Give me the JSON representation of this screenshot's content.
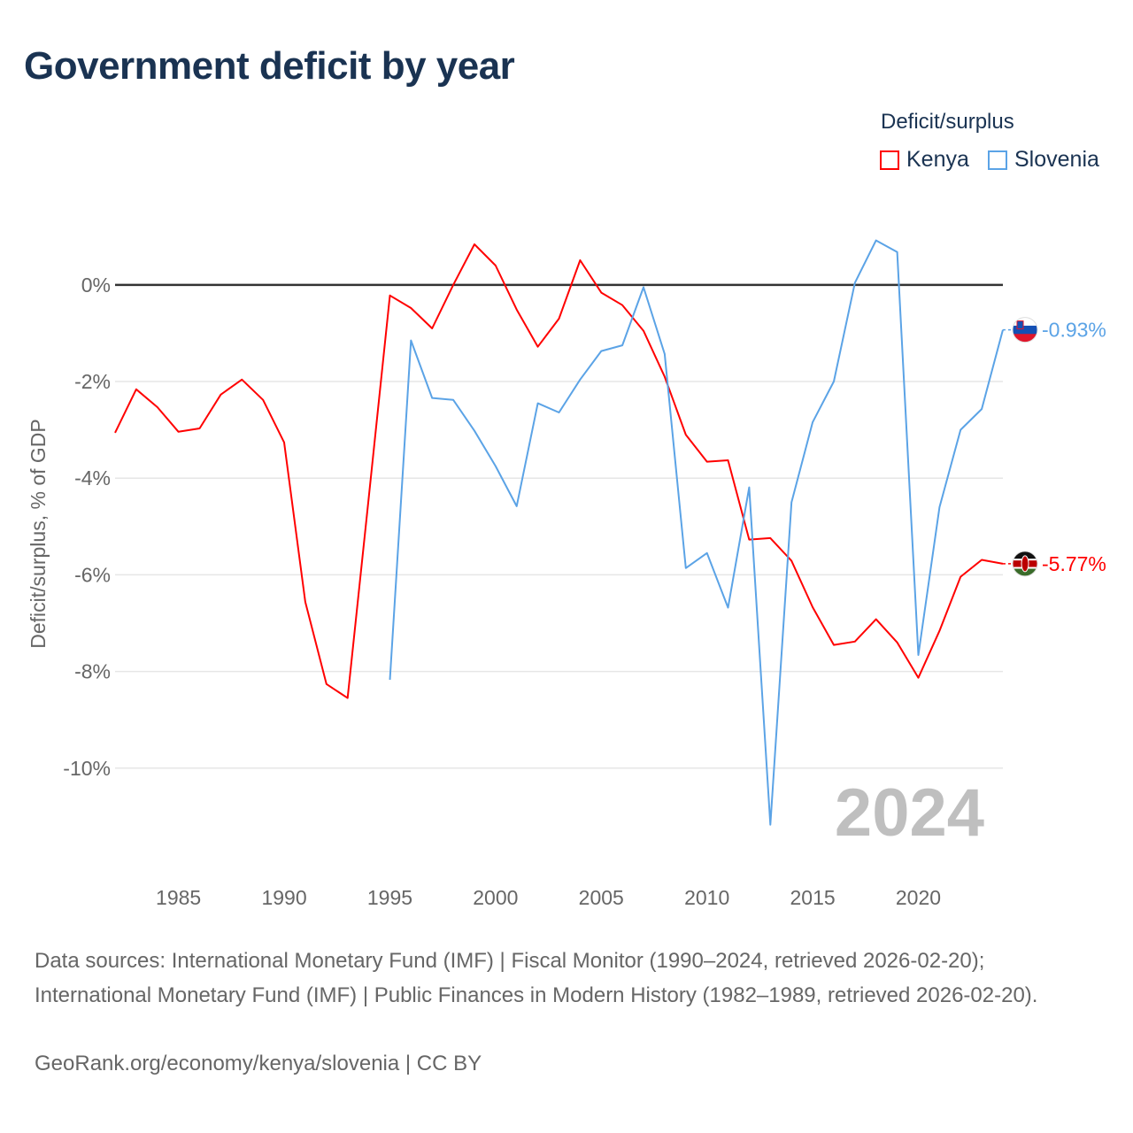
{
  "chart_data": {
    "type": "line",
    "title": "Government deficit by year",
    "ylabel": "Deficit/surplus, % of GDP",
    "xlabel": "",
    "xlim": [
      1982,
      2024
    ],
    "ylim": [
      -12,
      1.7
    ],
    "x_ticks": [
      1985,
      1990,
      1995,
      2000,
      2005,
      2010,
      2015,
      2020
    ],
    "y_ticks": [
      0,
      -2,
      -4,
      -6,
      -8,
      -10
    ],
    "y_tick_labels": [
      "0%",
      "-2%",
      "-4%",
      "-6%",
      "-8%",
      "-10%"
    ],
    "grid": true,
    "legend": {
      "title": "Deficit/surplus",
      "placement": "top-right"
    },
    "year_watermark": "2024",
    "series": [
      {
        "name": "Kenya",
        "color": "#ff0000",
        "end_label": "-5.77%",
        "x": [
          1982,
          1983,
          1984,
          1985,
          1986,
          1987,
          1988,
          1989,
          1990,
          1991,
          1992,
          1993,
          1994,
          1995,
          1996,
          1997,
          1998,
          1999,
          2000,
          2001,
          2002,
          2003,
          2004,
          2005,
          2006,
          2007,
          2008,
          2009,
          2010,
          2011,
          2012,
          2013,
          2014,
          2015,
          2016,
          2017,
          2018,
          2019,
          2020,
          2021,
          2022,
          2023,
          2024
        ],
        "values": [
          -3.06,
          -2.16,
          -2.53,
          -3.04,
          -2.97,
          -2.27,
          -1.96,
          -2.38,
          -3.26,
          -6.56,
          -8.26,
          -8.55,
          -4.4,
          -0.22,
          -0.48,
          -0.9,
          0.0,
          0.84,
          0.4,
          -0.51,
          -1.28,
          -0.7,
          0.51,
          -0.16,
          -0.42,
          -0.95,
          -1.9,
          -3.1,
          -3.66,
          -3.63,
          -5.27,
          -5.24,
          -5.71,
          -6.67,
          -7.45,
          -7.38,
          -6.92,
          -7.4,
          -8.13,
          -7.16,
          -6.04,
          -5.69,
          -5.77
        ]
      },
      {
        "name": "Slovenia",
        "color": "#5ba3e6",
        "end_label": "-0.93%",
        "x": [
          1995,
          1996,
          1997,
          1998,
          1999,
          2000,
          2001,
          2002,
          2003,
          2004,
          2005,
          2006,
          2007,
          2008,
          2009,
          2010,
          2011,
          2012,
          2013,
          2014,
          2015,
          2016,
          2017,
          2018,
          2019,
          2020,
          2021,
          2022,
          2023,
          2024
        ],
        "values": [
          -8.17,
          -1.15,
          -2.34,
          -2.38,
          -3.02,
          -3.75,
          -4.58,
          -2.45,
          -2.64,
          -1.96,
          -1.37,
          -1.25,
          -0.05,
          -1.43,
          -5.86,
          -5.55,
          -6.68,
          -4.19,
          -11.17,
          -4.5,
          -2.84,
          -2.0,
          0.04,
          0.92,
          0.68,
          -7.66,
          -4.6,
          -3.0,
          -2.57,
          -0.93
        ]
      }
    ]
  },
  "footer": {
    "sources": "Data sources: International Monetary Fund (IMF) | Fiscal Monitor (1990–2024, retrieved 2026-02-20); International Monetary Fund (IMF) | Public Finances in Modern History (1982–1989, retrieved 2026-02-20).",
    "credit": "GeoRank.org/economy/kenya/slovenia | CC BY"
  }
}
